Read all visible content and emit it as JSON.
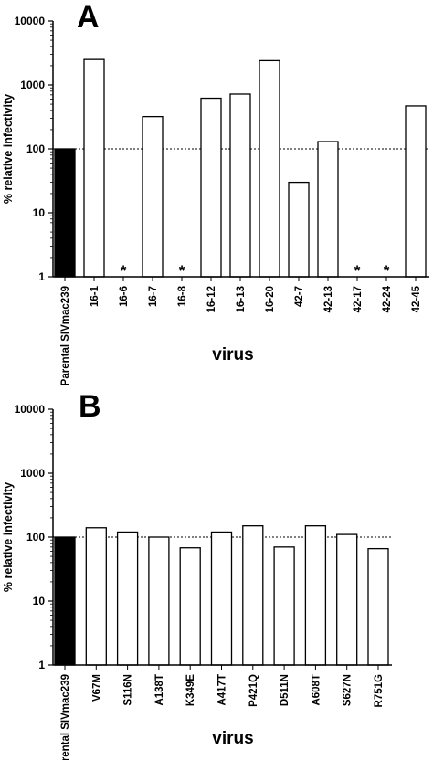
{
  "chart_data": [
    {
      "type": "bar",
      "panel": "A",
      "ylabel": "% relative infectivity",
      "xlabel": "virus",
      "yscale": "log",
      "ylim": [
        1,
        10000
      ],
      "yticks": [
        "1",
        "10",
        "100",
        "1000",
        "10000"
      ],
      "reference_line": 100,
      "categories": [
        "Parental SIVmac239",
        "16-1",
        "16-6",
        "16-7",
        "16-8",
        "16-12",
        "16-13",
        "16-20",
        "42-7",
        "42-13",
        "42-17",
        "42-24",
        "42-45"
      ],
      "values": [
        100,
        2500,
        null,
        320,
        null,
        620,
        720,
        2400,
        30,
        130,
        null,
        null,
        470
      ],
      "markers": [
        "",
        "",
        "*",
        "",
        "*",
        "",
        "",
        "",
        "",
        "",
        "*",
        "*",
        ""
      ],
      "colors": {
        "parental": "#000000",
        "mutant": "#ffffff"
      }
    },
    {
      "type": "bar",
      "panel": "B",
      "ylabel": "% relative infectivity",
      "xlabel": "virus",
      "yscale": "log",
      "ylim": [
        1,
        10000
      ],
      "yticks": [
        "1",
        "10",
        "100",
        "1000",
        "10000"
      ],
      "reference_line": 100,
      "categories": [
        "Parental SIVmac239",
        "V67M",
        "S116N",
        "A138T",
        "K349E",
        "A417T",
        "P421Q",
        "D511N",
        "A608T",
        "S627N",
        "R751G"
      ],
      "values": [
        100,
        140,
        120,
        100,
        68,
        120,
        150,
        70,
        150,
        110,
        66
      ],
      "markers": [
        "",
        "",
        "",
        "",
        "",
        "",
        "",
        "",
        "",
        "",
        ""
      ],
      "colors": {
        "parental": "#000000",
        "mutant": "#ffffff"
      }
    }
  ]
}
